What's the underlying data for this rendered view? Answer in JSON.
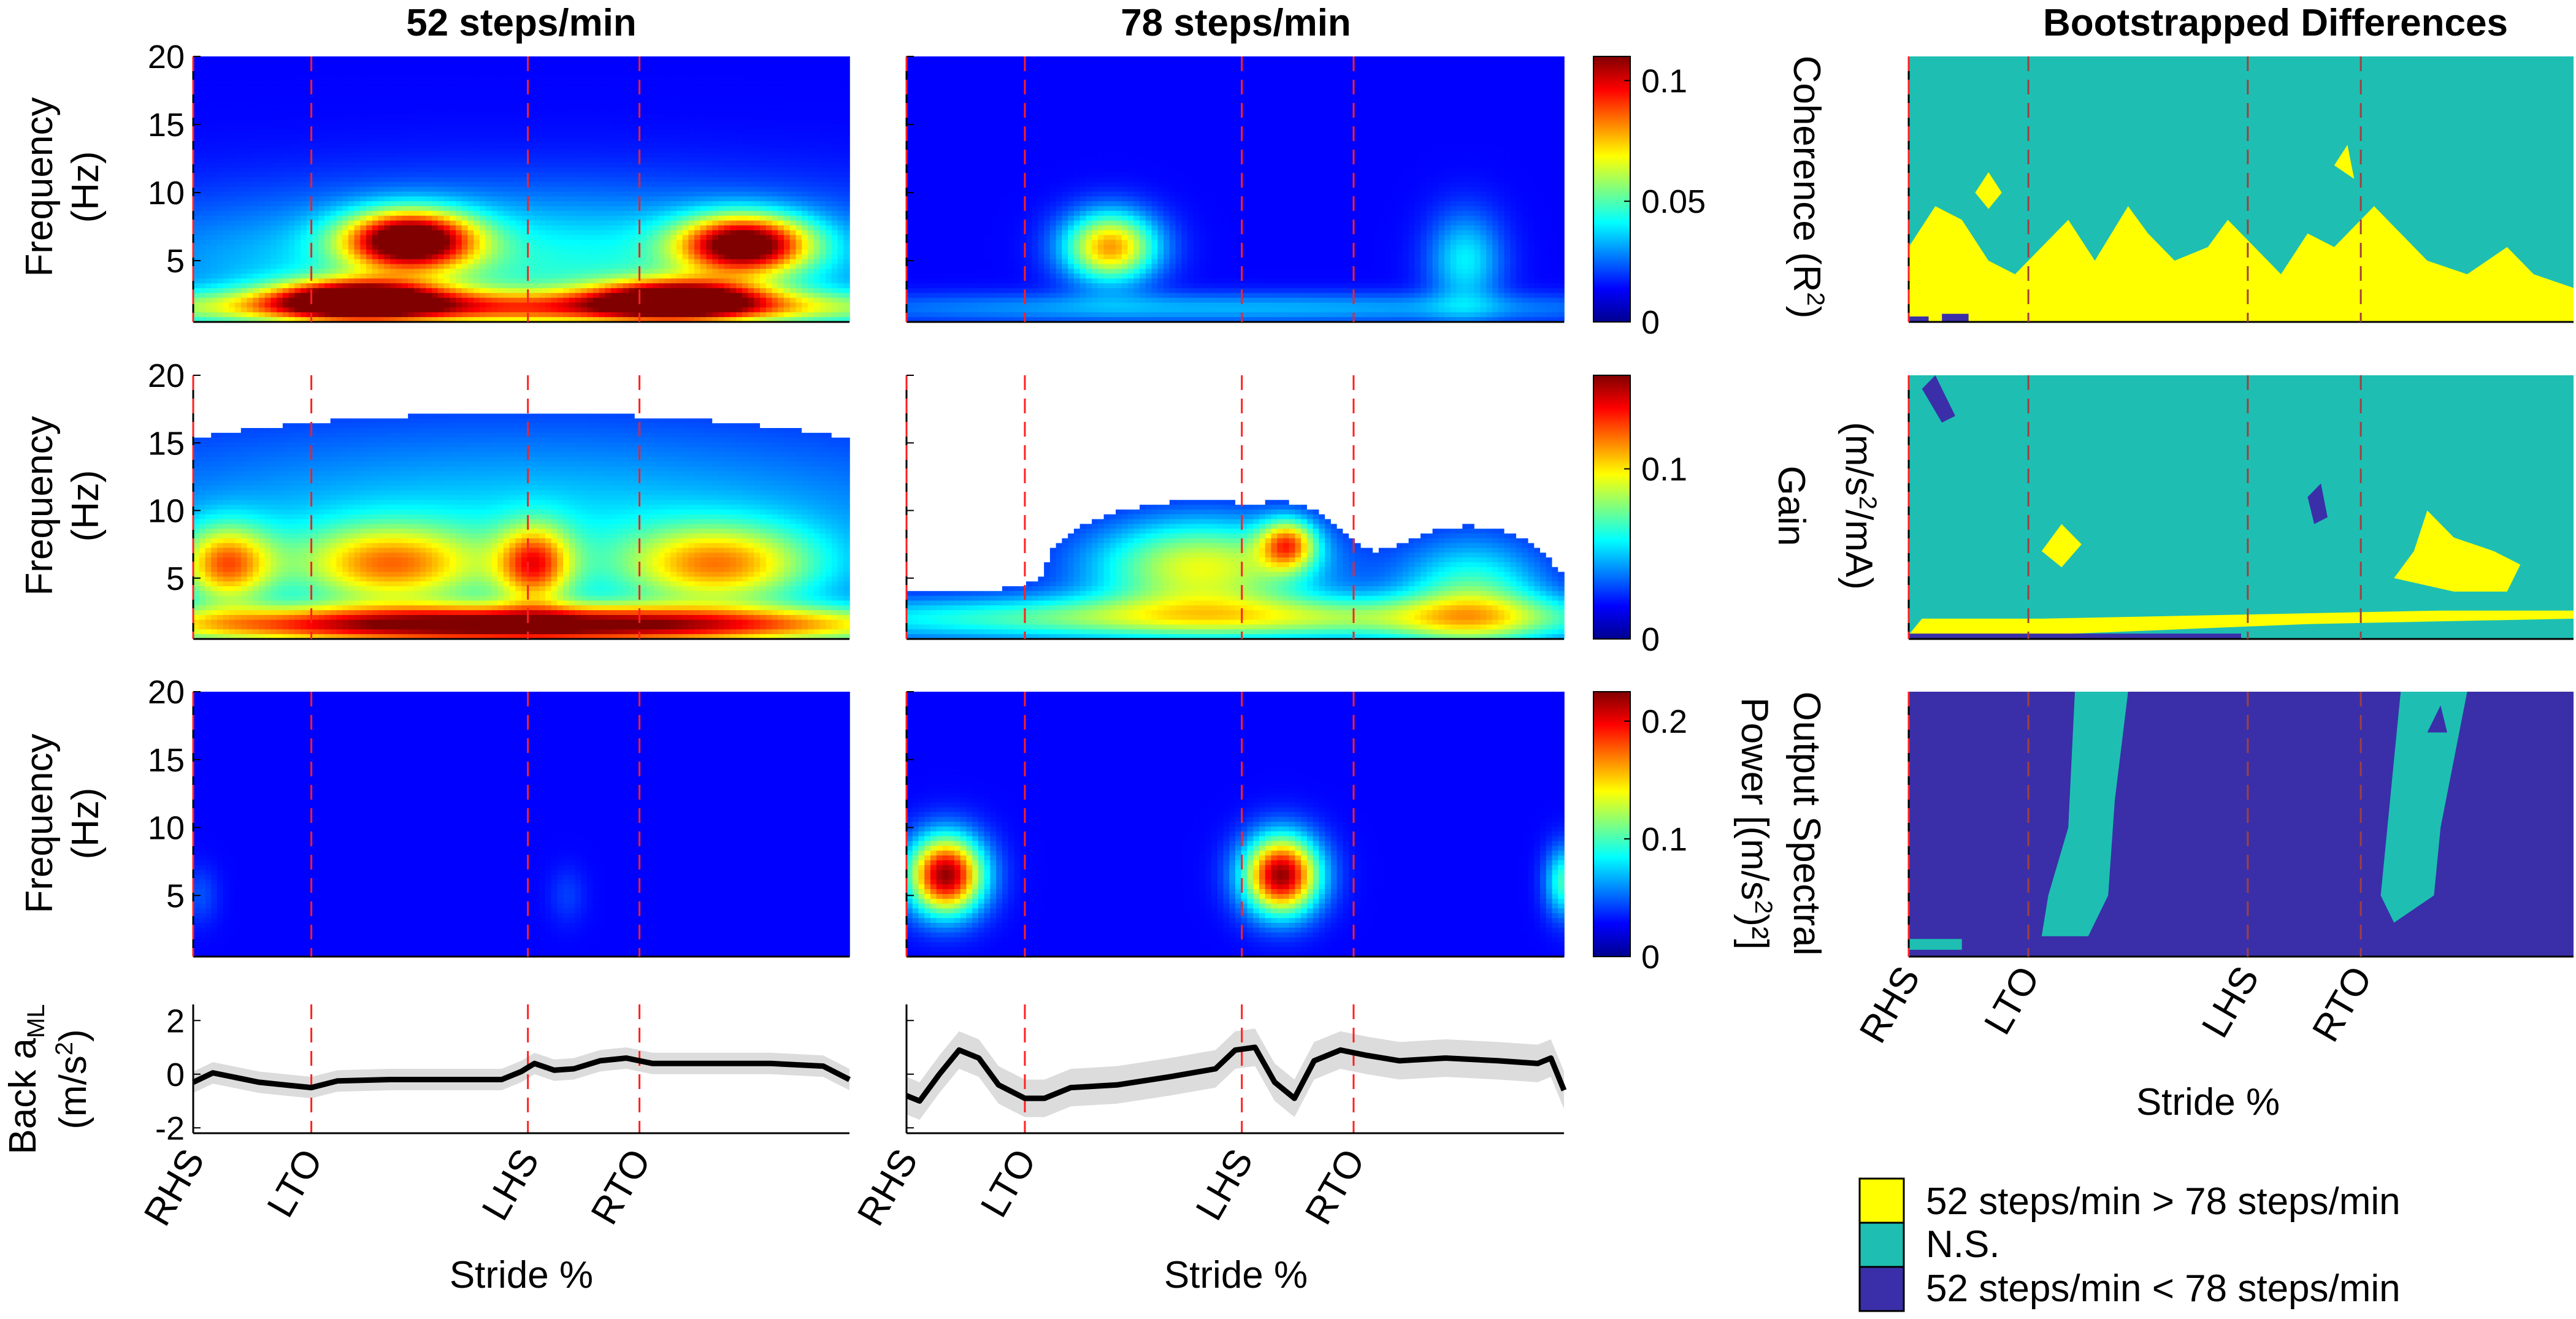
{
  "figure": {
    "col_titles": [
      "52 steps/min",
      "78 steps/min",
      "Bootstrapped Differences"
    ],
    "y_label_line1": "Frequency",
    "y_label_line2": "(Hz)",
    "x_label": "Stride %",
    "event_labels": [
      "RHS",
      "LTO",
      "LHS",
      "RTO"
    ],
    "back_label_main": "Back a",
    "back_label_sub": "ML",
    "back_units": "(m/s",
    "back_units_sup": "2",
    "back_units_end": ")"
  },
  "colorbars": [
    {
      "label": "Coherence (R",
      "label_sup": "2",
      "label_end": ")",
      "ticks": [
        "0.1",
        "0.05",
        "0"
      ],
      "tick_values": [
        0.1,
        0.05,
        0
      ],
      "max": 0.11
    },
    {
      "label": "Gain",
      "label2": "(m/s",
      "label2_sup": "2",
      "label2_end": "/mA)",
      "ticks": [
        "0.1",
        "0"
      ],
      "tick_values": [
        0.1,
        0
      ],
      "max": 0.155
    },
    {
      "label": "Output Spectral",
      "label2": "Power [(m/s",
      "label2_sup": "2",
      "label2_end": ")²]",
      "ticks": [
        "0.2",
        "0.1",
        "0"
      ],
      "tick_values": [
        0.2,
        0.1,
        0
      ],
      "max": 0.225
    }
  ],
  "legend": [
    {
      "label": "52 steps/min > 78 steps/min",
      "color": "#ffff00"
    },
    {
      "label": "N.S.",
      "color": "#1ebfb2"
    },
    {
      "label": "52 steps/min < 78 steps/min",
      "color": "#3a2fa8"
    }
  ],
  "chart_data": {
    "type": "heatmap",
    "x_range": [
      0,
      100
    ],
    "x_unit": "stride %",
    "y_range": [
      0.5,
      20
    ],
    "y_ticks": [
      "20",
      "15",
      "10",
      "5"
    ],
    "y_tick_values": [
      20,
      15,
      10,
      5
    ],
    "events": {
      "52": [
        0,
        18,
        51,
        68
      ],
      "78": [
        0,
        18,
        51,
        68
      ]
    },
    "rows": [
      {
        "metric": "Coherence",
        "panels": [
          {
            "condition": "52 steps/min",
            "blobs": [
              {
                "x": 33,
                "f": 6.5,
                "sx": 7,
                "sf": 1.5,
                "v": 0.11
              },
              {
                "x": 84,
                "f": 6.2,
                "sx": 7,
                "sf": 1.5,
                "v": 0.105
              },
              {
                "x": 25,
                "f": 2.2,
                "sx": 9,
                "sf": 1.0,
                "v": 0.1
              },
              {
                "x": 74,
                "f": 2.2,
                "sx": 9,
                "sf": 1.0,
                "v": 0.095
              },
              {
                "x": 50,
                "f": 4.5,
                "sx": 45,
                "sf": 4,
                "v": 0.035
              },
              {
                "x": 50,
                "f": 1.5,
                "sx": 50,
                "sf": 0.9,
                "v": 0.06
              }
            ]
          },
          {
            "condition": "78 steps/min",
            "blobs": [
              {
                "x": 31,
                "f": 6.0,
                "sx": 5,
                "sf": 1.8,
                "v": 0.075
              },
              {
                "x": 85,
                "f": 5.0,
                "sx": 4,
                "sf": 2.5,
                "v": 0.03
              },
              {
                "x": 50,
                "f": 1.5,
                "sx": 50,
                "sf": 0.8,
                "v": 0.022
              }
            ]
          }
        ]
      },
      {
        "metric": "Gain",
        "panels": [
          {
            "condition": "52 steps/min",
            "blobs": [
              {
                "x": 50,
                "f": 1.5,
                "sx": 42,
                "sf": 1.0,
                "v": 0.15
              },
              {
                "x": 30,
                "f": 6.0,
                "sx": 10,
                "sf": 2,
                "v": 0.08
              },
              {
                "x": 80,
                "f": 6.0,
                "sx": 10,
                "sf": 2,
                "v": 0.08
              },
              {
                "x": 5,
                "f": 6.0,
                "sx": 5,
                "sf": 2,
                "v": 0.09
              },
              {
                "x": 52,
                "f": 6.0,
                "sx": 4,
                "sf": 2,
                "v": 0.09
              },
              {
                "x": 50,
                "f": 8,
                "sx": 55,
                "sf": 6,
                "v": 0.04
              }
            ]
          },
          {
            "condition": "78 steps/min",
            "blobs": [
              {
                "x": 45,
                "f": 5.8,
                "sx": 12,
                "sf": 2.5,
                "v": 0.085
              },
              {
                "x": 58,
                "f": 7.5,
                "sx": 3,
                "sf": 1.3,
                "v": 0.09
              },
              {
                "x": 50,
                "f": 2.0,
                "sx": 50,
                "sf": 1.2,
                "v": 0.07
              },
              {
                "x": 86,
                "f": 3.5,
                "sx": 8,
                "sf": 3,
                "v": 0.06
              }
            ]
          }
        ]
      },
      {
        "metric": "Output Spectral Power",
        "panels": [
          {
            "condition": "52 steps/min",
            "blobs": [
              {
                "x": 1,
                "f": 5.0,
                "sx": 2,
                "sf": 1.5,
                "v": 0.02
              },
              {
                "x": 57,
                "f": 5.0,
                "sx": 2,
                "sf": 1.5,
                "v": 0.015
              }
            ]
          },
          {
            "condition": "78 steps/min",
            "blobs": [
              {
                "x": 6,
                "f": 6.5,
                "sx": 4,
                "sf": 2.0,
                "v": 0.22
              },
              {
                "x": 57,
                "f": 6.5,
                "sx": 4,
                "sf": 2.0,
                "v": 0.22
              },
              {
                "x": 100,
                "f": 6.0,
                "sx": 2,
                "sf": 1.8,
                "v": 0.08
              }
            ]
          }
        ]
      }
    ],
    "back_accel": {
      "ylabel": "m/s^2",
      "y_range": [
        -2.2,
        2.6
      ],
      "y_ticks": [
        "2",
        "0",
        "-2"
      ],
      "y_tick_values": [
        2,
        0,
        -2
      ],
      "panels": [
        {
          "condition": "52 steps/min",
          "x": [
            0,
            3,
            6,
            10,
            14,
            18,
            22,
            30,
            40,
            47,
            50,
            52,
            55,
            58,
            62,
            66,
            70,
            78,
            88,
            96,
            100
          ],
          "y": [
            -0.3,
            0.05,
            -0.1,
            -0.3,
            -0.4,
            -0.5,
            -0.25,
            -0.2,
            -0.2,
            -0.2,
            0.1,
            0.4,
            0.15,
            0.2,
            0.5,
            0.6,
            0.4,
            0.4,
            0.4,
            0.3,
            -0.2
          ],
          "band": 0.4
        },
        {
          "condition": "78 steps/min",
          "x": [
            0,
            2,
            5,
            8,
            11,
            14,
            18,
            21,
            25,
            32,
            40,
            47,
            50,
            53,
            56,
            59,
            62,
            66,
            70,
            75,
            82,
            90,
            96,
            98,
            100
          ],
          "y": [
            -0.8,
            -1.0,
            0.0,
            0.9,
            0.6,
            -0.4,
            -0.9,
            -0.9,
            -0.5,
            -0.4,
            -0.1,
            0.2,
            0.9,
            1.0,
            -0.3,
            -0.9,
            0.5,
            0.9,
            0.7,
            0.5,
            0.6,
            0.5,
            0.4,
            0.6,
            -0.6
          ],
          "band": 0.7
        }
      ]
    },
    "bootstrap": {
      "categories": [
        "52 steps/min > 78 steps/min",
        "N.S.",
        "52 steps/min < 78 steps/min"
      ],
      "panels": [
        {
          "metric": "Coherence",
          "background": "ns",
          "regions": [
            {
              "cat": "gt",
              "pts": [
                [
                  0,
                  0.5
                ],
                [
                  0,
                  6
                ],
                [
                  4,
                  9
                ],
                [
                  8,
                  8
                ],
                [
                  12,
                  5
                ],
                [
                  16,
                  4
                ],
                [
                  20,
                  6
                ],
                [
                  24,
                  8
                ],
                [
                  28,
                  5
                ],
                [
                  33,
                  9
                ],
                [
                  36,
                  7
                ],
                [
                  40,
                  5
                ],
                [
                  45,
                  6
                ],
                [
                  48,
                  8
                ],
                [
                  52,
                  6
                ],
                [
                  56,
                  4
                ],
                [
                  60,
                  7
                ],
                [
                  64,
                  6
                ],
                [
                  70,
                  9
                ],
                [
                  74,
                  7
                ],
                [
                  78,
                  5
                ],
                [
                  84,
                  4
                ],
                [
                  90,
                  6
                ],
                [
                  94,
                  4
                ],
                [
                  100,
                  3
                ],
                [
                  100,
                  0.5
                ]
              ]
            },
            {
              "cat": "gt",
              "pts": [
                [
                  10,
                  10
                ],
                [
                  12,
                  11.5
                ],
                [
                  14,
                  10
                ],
                [
                  12,
                  8.8
                ]
              ]
            },
            {
              "cat": "gt",
              "pts": [
                [
                  64,
                  12
                ],
                [
                  66,
                  13.5
                ],
                [
                  67,
                  11
                ]
              ]
            },
            {
              "cat": "lt",
              "pts": [
                [
                  5,
                  0.5
                ],
                [
                  9,
                  0.5
                ],
                [
                  9,
                  1.1
                ],
                [
                  5,
                  1.1
                ]
              ]
            },
            {
              "cat": "lt",
              "pts": [
                [
                  0,
                  0.5
                ],
                [
                  3,
                  0.5
                ],
                [
                  3,
                  0.9
                ],
                [
                  0,
                  0.9
                ]
              ]
            }
          ]
        },
        {
          "metric": "Gain",
          "background": "ns",
          "regions": [
            {
              "cat": "gt",
              "pts": [
                [
                  0,
                  0.8
                ],
                [
                  20,
                  0.8
                ],
                [
                  40,
                  1.2
                ],
                [
                  60,
                  1.6
                ],
                [
                  80,
                  1.8
                ],
                [
                  100,
                  2.0
                ],
                [
                  100,
                  2.6
                ],
                [
                  80,
                  2.6
                ],
                [
                  60,
                  2.4
                ],
                [
                  40,
                  2.2
                ],
                [
                  20,
                  2.0
                ],
                [
                  2,
                  2.0
                ]
              ]
            },
            {
              "cat": "gt",
              "pts": [
                [
                  20,
                  7
                ],
                [
                  23,
                  9
                ],
                [
                  26,
                  7.5
                ],
                [
                  23,
                  5.8
                ]
              ]
            },
            {
              "cat": "gt",
              "pts": [
                [
                  73,
                  5
                ],
                [
                  76,
                  7
                ],
                [
                  78,
                  10
                ],
                [
                  82,
                  8
                ],
                [
                  88,
                  7
                ],
                [
                  92,
                  6
                ],
                [
                  90,
                  4
                ],
                [
                  82,
                  4
                ]
              ]
            },
            {
              "cat": "lt",
              "pts": [
                [
                  2,
                  19
                ],
                [
                  4,
                  20
                ],
                [
                  7,
                  17
                ],
                [
                  5,
                  16.5
                ]
              ]
            },
            {
              "cat": "lt",
              "pts": [
                [
                  60,
                  11
                ],
                [
                  62,
                  12
                ],
                [
                  63,
                  9.5
                ],
                [
                  61,
                  9
                ]
              ]
            },
            {
              "cat": "lt",
              "pts": [
                [
                  0,
                  0.5
                ],
                [
                  50,
                  0.5
                ],
                [
                  50,
                  0.9
                ],
                [
                  0,
                  0.9
                ]
              ]
            }
          ]
        },
        {
          "metric": "Output Spectral Power",
          "background": "lt",
          "regions": [
            {
              "cat": "ns",
              "pts": [
                [
                  25,
                  20
                ],
                [
                  33,
                  20
                ],
                [
                  31,
                  12
                ],
                [
                  30,
                  5
                ],
                [
                  27,
                  2
                ],
                [
                  20,
                  2
                ],
                [
                  21,
                  5
                ],
                [
                  24,
                  10
                ]
              ]
            },
            {
              "cat": "ns",
              "pts": [
                [
                  74,
                  20
                ],
                [
                  84,
                  20
                ],
                [
                  82,
                  15
                ],
                [
                  80,
                  10
                ],
                [
                  79,
                  5
                ],
                [
                  73,
                  3
                ],
                [
                  71,
                  5
                ],
                [
                  72,
                  10
                ],
                [
                  73,
                  15
                ]
              ]
            },
            {
              "cat": "lt",
              "pts": [
                [
                  78,
                  17
                ],
                [
                  80,
                  19
                ],
                [
                  81,
                  17
                ]
              ]
            },
            {
              "cat": "ns",
              "pts": [
                [
                  0,
                  1
                ],
                [
                  8,
                  1
                ],
                [
                  8,
                  1.8
                ],
                [
                  0,
                  1.8
                ]
              ]
            }
          ]
        }
      ]
    }
  }
}
